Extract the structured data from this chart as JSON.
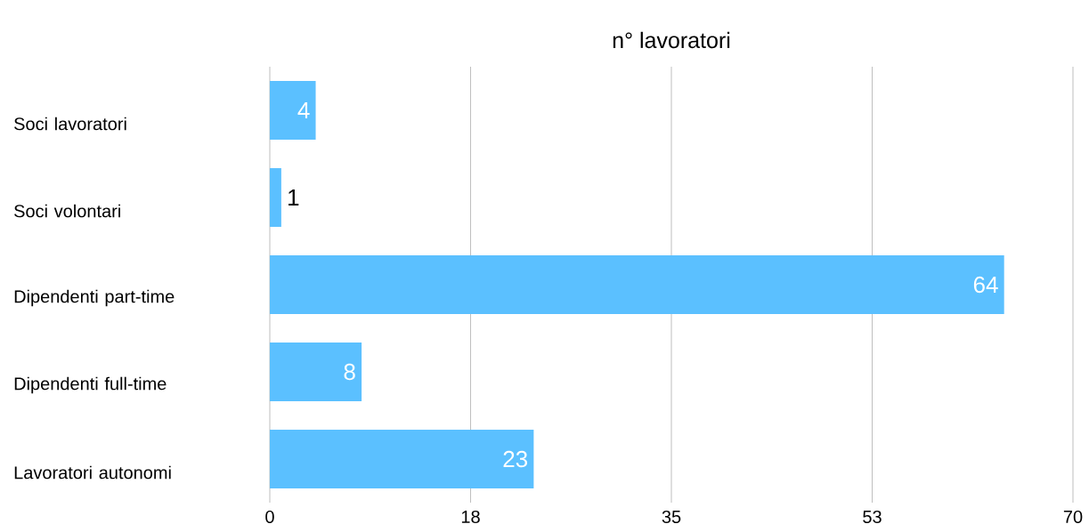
{
  "chart_data": {
    "type": "bar",
    "orientation": "horizontal",
    "title": "n° lavoratori",
    "categories": [
      "Soci lavoratori",
      "Soci volontari",
      "Dipendenti part-time",
      "Dipendenti full-time",
      "Lavoratori autonomi"
    ],
    "values": [
      4,
      1,
      64,
      8,
      23
    ],
    "color": "#5bc0ff",
    "data_labels": true,
    "xlim": [
      0,
      70
    ],
    "xticks": [
      0,
      {
        "value": 17.5,
        "label": "18"
      },
      35,
      {
        "value": 52.5,
        "label": "53"
      },
      70
    ],
    "grid": "x"
  }
}
